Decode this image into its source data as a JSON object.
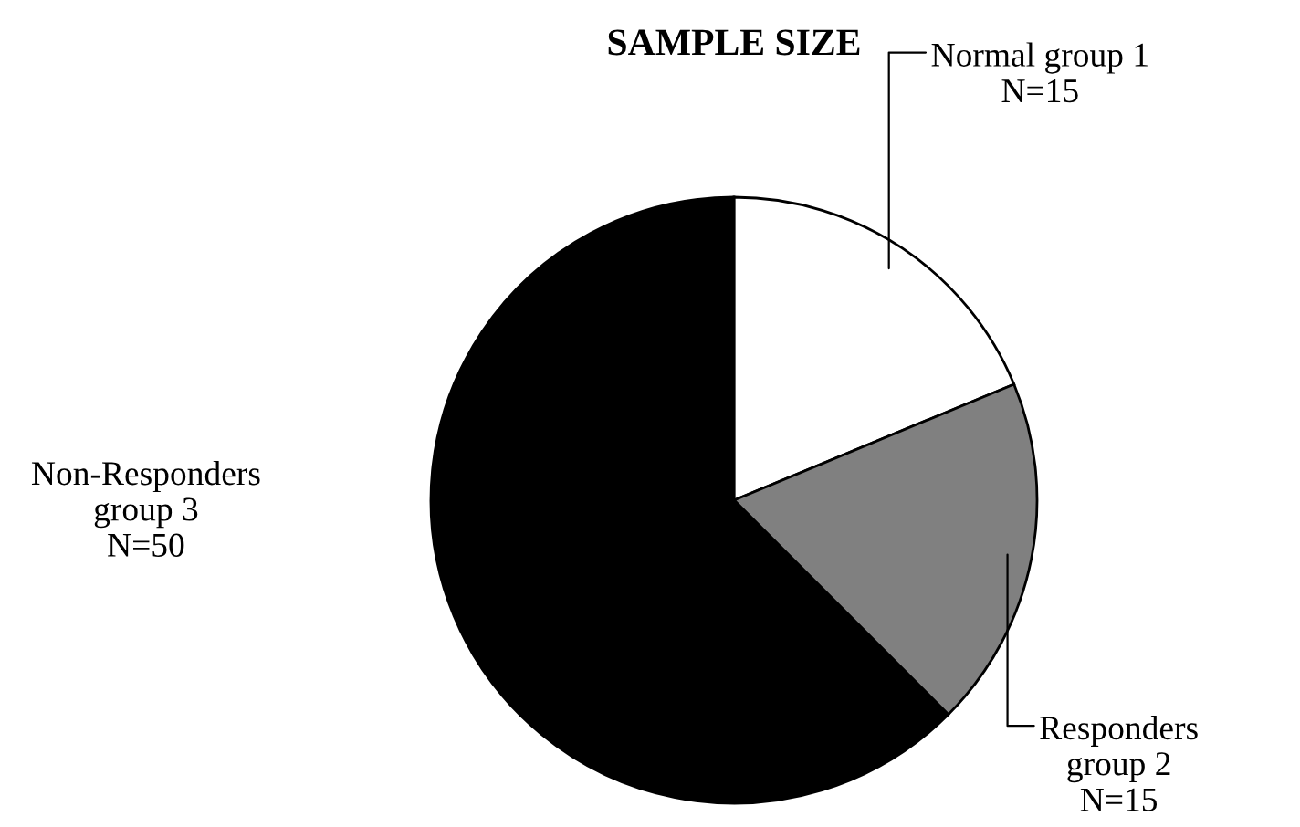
{
  "chart_data": {
    "type": "pie",
    "title": "SAMPLE SIZE",
    "categories": [
      "Normal group 1\nN=15",
      "Responders\ngroup 2\nN=15",
      "Non-Responders\ngroup 3\nN=50"
    ],
    "values": [
      15,
      15,
      50
    ],
    "colors": [
      "#ffffff",
      "#808080",
      "#000000"
    ]
  }
}
